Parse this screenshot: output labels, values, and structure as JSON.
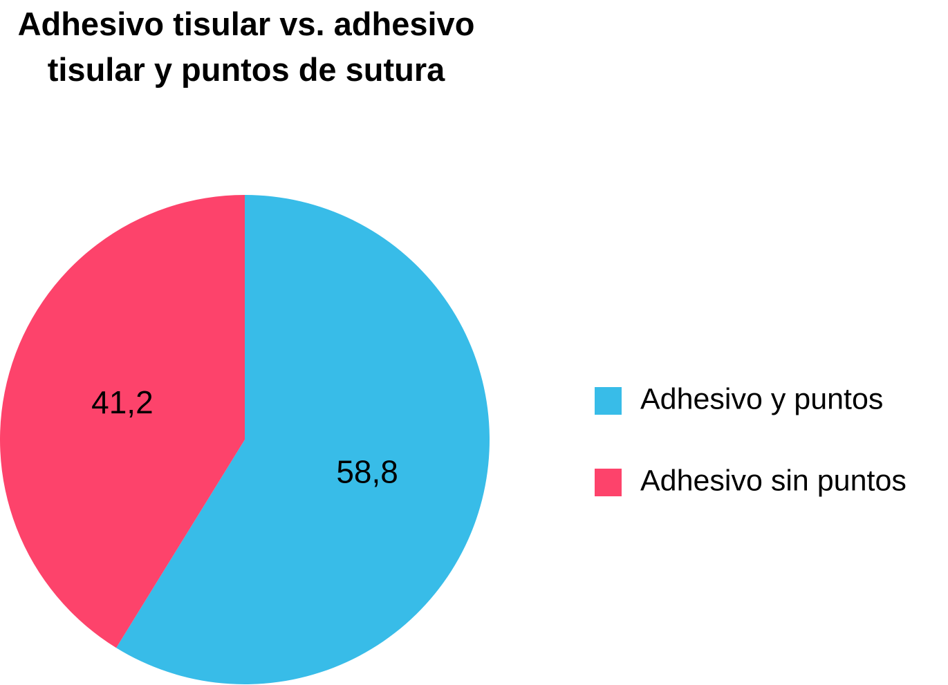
{
  "chart_data": {
    "type": "pie",
    "title": "Adhesivo tisular vs. adhesivo tisular y puntos de sutura",
    "categories": [
      "Adhesivo y puntos",
      "Adhesivo sin puntos"
    ],
    "values": [
      58.8,
      41.2
    ],
    "value_labels": [
      "58,8",
      "41,2"
    ],
    "colors": [
      "#38bce8",
      "#fd436b"
    ],
    "legend": "right"
  }
}
